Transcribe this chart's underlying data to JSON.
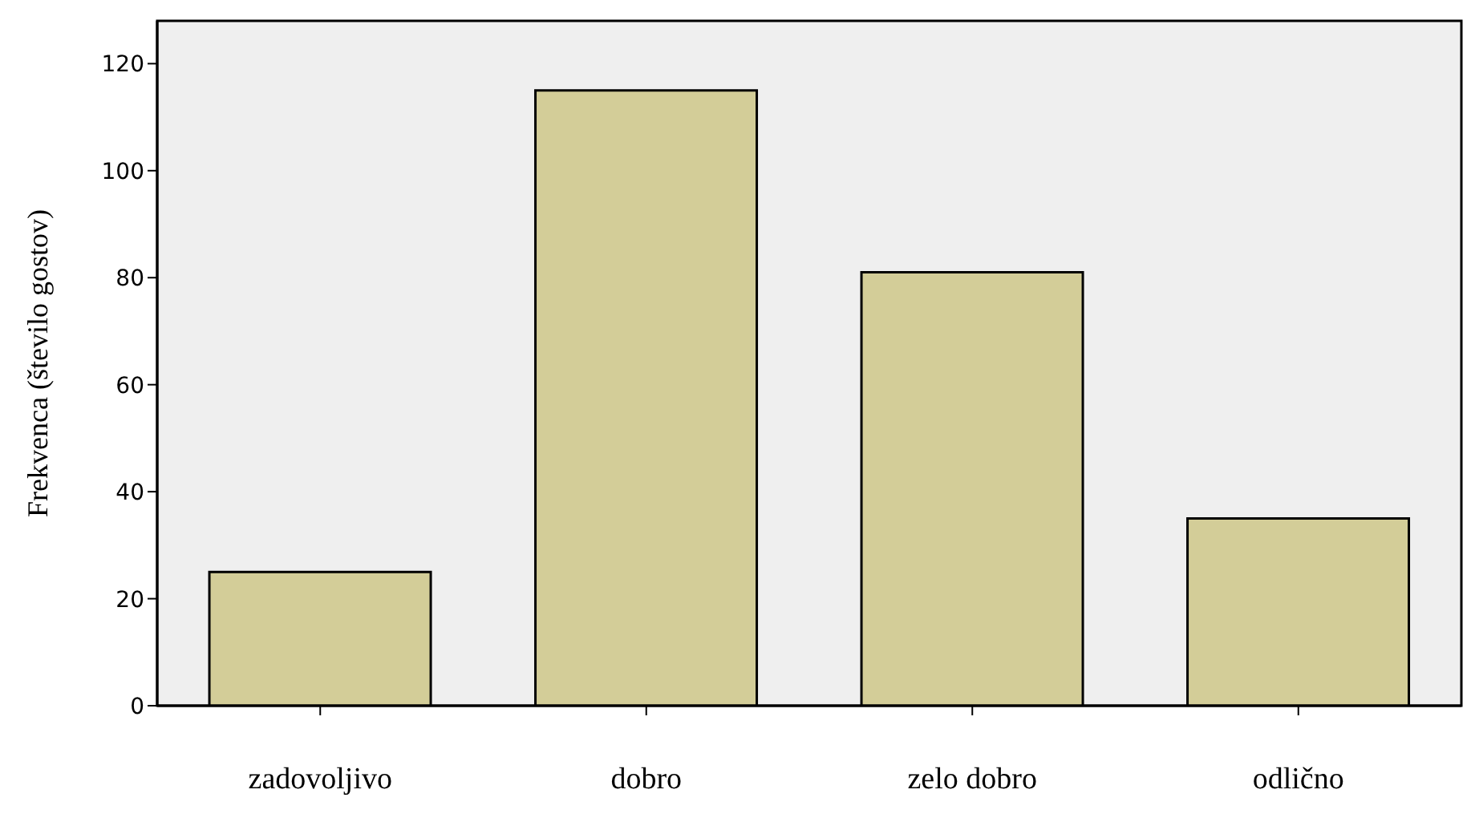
{
  "chart_data": {
    "type": "bar",
    "ylabel": "Frekvenca (število gostov)",
    "categories": [
      "zadovoljivo",
      "dobro",
      "zelo dobro",
      "odlično"
    ],
    "values": [
      25,
      115,
      81,
      35
    ],
    "color": "#d3cd98",
    "ylim": [
      0,
      128
    ],
    "yticks": [
      0,
      20,
      40,
      60,
      80,
      100,
      120
    ]
  }
}
